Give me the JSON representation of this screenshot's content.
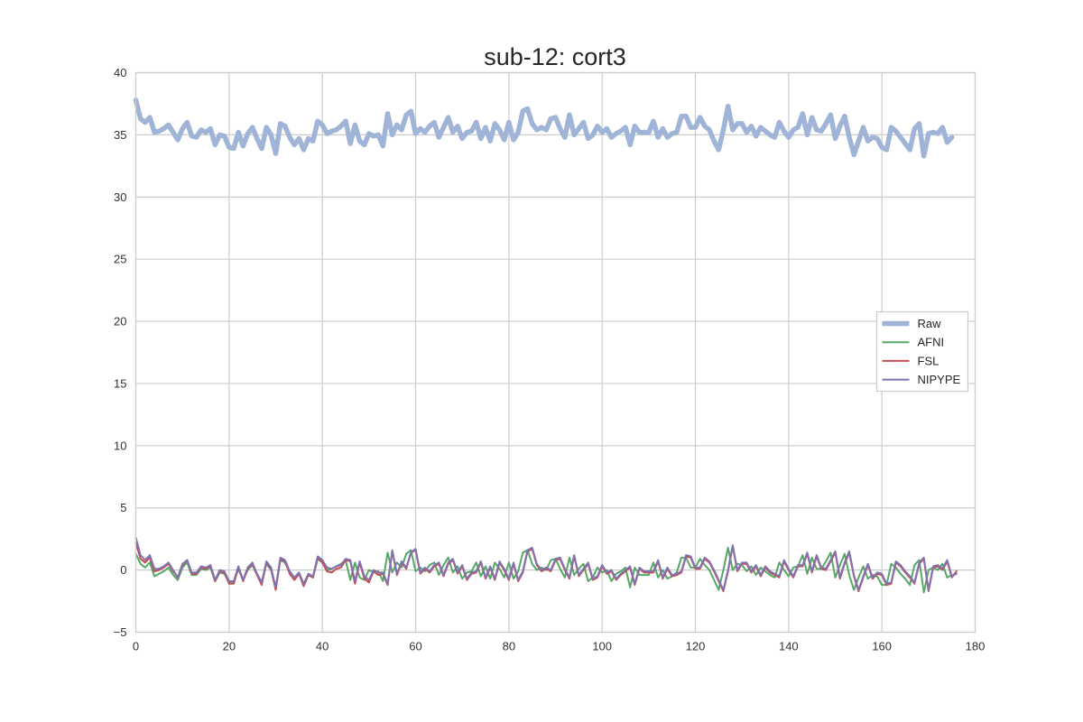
{
  "chart_data": {
    "type": "line",
    "title": "sub-12: cort3",
    "xlabel": "",
    "ylabel": "",
    "xlim": [
      0,
      180
    ],
    "ylim": [
      -5,
      40
    ],
    "xticks": [
      0,
      20,
      40,
      60,
      80,
      100,
      120,
      140,
      160,
      180
    ],
    "yticks": [
      -5,
      0,
      5,
      10,
      15,
      20,
      25,
      30,
      35,
      40
    ],
    "xtick_labels": [
      "0",
      "20",
      "40",
      "60",
      "80",
      "100",
      "120",
      "140",
      "160",
      "180"
    ],
    "ytick_labels": [
      "−5",
      "0",
      "5",
      "10",
      "15",
      "20",
      "25",
      "30",
      "35",
      "40"
    ],
    "grid": true,
    "legend_position": "center-right",
    "series": [
      {
        "name": "Raw",
        "color": "#9fb4d6",
        "values": [
          37.8,
          36.3,
          36.0,
          36.4,
          35.2,
          35.3,
          35.5,
          35.8,
          35.2,
          34.6,
          35.5,
          36.0,
          34.9,
          34.8,
          35.4,
          35.2,
          35.5,
          34.2,
          35.0,
          34.9,
          34.0,
          33.9,
          35.2,
          34.1,
          35.1,
          35.6,
          34.7,
          33.9,
          35.6,
          35.0,
          33.5,
          35.9,
          35.7,
          34.8,
          34.2,
          34.7,
          33.8,
          34.7,
          34.5,
          36.1,
          35.8,
          35.1,
          35.3,
          35.4,
          35.7,
          36.1,
          34.3,
          35.8,
          34.5,
          34.2,
          35.1,
          34.9,
          35.0,
          34.1,
          36.7,
          35.0,
          35.8,
          35.4,
          36.6,
          36.9,
          35.1,
          35.5,
          35.2,
          35.7,
          36.0,
          34.8,
          35.6,
          36.4,
          35.2,
          35.7,
          34.7,
          35.2,
          35.3,
          36.0,
          34.7,
          35.6,
          34.5,
          35.9,
          35.4,
          34.6,
          36.0,
          34.6,
          35.2,
          36.9,
          37.1,
          35.9,
          35.4,
          35.6,
          35.4,
          36.3,
          36.4,
          35.5,
          34.8,
          36.6,
          35.0,
          35.5,
          36.0,
          34.7,
          35.0,
          35.7,
          35.2,
          35.5,
          34.8,
          35.1,
          35.3,
          35.6,
          34.2,
          35.7,
          35.2,
          35.2,
          35.2,
          36.1,
          34.8,
          35.5,
          34.8,
          35.1,
          35.2,
          36.5,
          36.5,
          35.6,
          35.6,
          36.4,
          35.7,
          35.4,
          34.5,
          33.8,
          35.4,
          37.3,
          35.4,
          35.9,
          35.9,
          35.2,
          35.7,
          34.9,
          35.6,
          35.3,
          35.0,
          34.8,
          36.0,
          35.3,
          34.8,
          35.4,
          35.6,
          36.7,
          35.0,
          36.4,
          35.4,
          35.3,
          35.9,
          36.6,
          34.7,
          35.7,
          36.5,
          34.8,
          33.4,
          34.5,
          35.6,
          34.5,
          34.8,
          34.7,
          34.0,
          33.8,
          35.6,
          35.3,
          34.8,
          34.3,
          33.8,
          35.5,
          35.9,
          33.3,
          35.1,
          35.2,
          35.1,
          35.6,
          34.4,
          34.8
        ],
        "linewidth": 5.5
      },
      {
        "name": "AFNI",
        "color": "#55a868",
        "values": [
          1.3,
          0.5,
          0.2,
          0.6,
          -0.5,
          -0.3,
          -0.1,
          0.2,
          -0.4,
          -0.8,
          0.2,
          0.6,
          -0.4,
          -0.4,
          0.1,
          0.0,
          0.2,
          -0.9,
          -0.2,
          -0.3,
          -1.0,
          -1.0,
          0.1,
          -0.8,
          0.0,
          0.4,
          -0.4,
          -1.0,
          0.5,
          0.0,
          -1.5,
          0.8,
          0.6,
          -0.2,
          -0.7,
          -0.3,
          -1.1,
          -0.4,
          -0.6,
          0.9,
          0.6,
          0.0,
          0.1,
          0.3,
          0.5,
          0.8,
          -0.8,
          0.6,
          -0.6,
          -0.8,
          0.0,
          -0.2,
          -0.1,
          -0.9,
          1.4,
          -0.2,
          0.6,
          0.2,
          1.3,
          1.6,
          -0.1,
          0.2,
          -0.1,
          0.4,
          0.6,
          -0.4,
          0.4,
          1.0,
          -0.2,
          0.3,
          -0.7,
          -0.2,
          -0.1,
          0.6,
          -0.5,
          0.3,
          -0.7,
          0.6,
          0.1,
          -0.6,
          0.6,
          -0.7,
          -0.1,
          1.4,
          1.6,
          0.5,
          0.0,
          0.2,
          0.0,
          0.8,
          0.9,
          0.1,
          -0.6,
          1.0,
          -0.4,
          0.1,
          0.5,
          -0.9,
          -0.6,
          0.2,
          -0.2,
          0.0,
          -0.9,
          -0.3,
          -0.1,
          0.2,
          -1.4,
          0.2,
          -0.4,
          -0.4,
          -0.4,
          0.6,
          -0.6,
          0.0,
          -0.7,
          -0.5,
          -0.2,
          1.0,
          1.0,
          0.2,
          0.2,
          0.9,
          0.4,
          0.0,
          -0.8,
          -1.6,
          0.0,
          1.8,
          0.0,
          0.5,
          0.4,
          -0.1,
          0.3,
          -0.4,
          0.2,
          -0.1,
          -0.4,
          -0.6,
          0.6,
          0.0,
          -0.5,
          0.2,
          0.3,
          1.2,
          -0.3,
          1.0,
          0.1,
          0.1,
          0.7,
          1.4,
          -0.6,
          0.4,
          1.3,
          -0.4,
          -1.6,
          -0.6,
          0.3,
          -0.7,
          -0.4,
          -0.5,
          -1.2,
          -1.2,
          0.5,
          0.2,
          -0.3,
          -0.7,
          -1.2,
          0.4,
          0.8,
          -1.8,
          0.0,
          0.2,
          0.0,
          0.5,
          -0.6,
          -0.4
        ]
      },
      {
        "name": "FSL",
        "color": "#c44e52",
        "values": [
          2.2,
          0.9,
          0.6,
          1.0,
          -0.1,
          0.0,
          0.2,
          0.5,
          -0.1,
          -0.6,
          0.4,
          0.8,
          -0.3,
          -0.3,
          0.2,
          0.1,
          0.3,
          -0.9,
          -0.1,
          -0.2,
          -1.1,
          -1.1,
          0.2,
          -0.9,
          0.1,
          0.5,
          -0.4,
          -1.2,
          0.6,
          0.1,
          -1.6,
          0.9,
          0.7,
          -0.3,
          -0.8,
          -0.3,
          -1.3,
          -0.4,
          -0.6,
          1.0,
          0.6,
          -0.1,
          -0.2,
          0.1,
          0.2,
          0.8,
          0.7,
          -1.1,
          0.6,
          -0.7,
          -1.0,
          -0.1,
          -0.4,
          -0.3,
          -1.2,
          1.5,
          -0.4,
          0.6,
          0.1,
          1.4,
          1.6,
          -0.3,
          0.1,
          -0.2,
          0.3,
          0.5,
          -0.5,
          0.5,
          0.8,
          -0.3,
          0.3,
          -0.8,
          -0.3,
          -0.2,
          0.6,
          -0.7,
          0.2,
          -0.8,
          0.6,
          0.0,
          -0.8,
          0.5,
          -0.9,
          -0.2,
          1.5,
          1.7,
          0.4,
          -0.1,
          0.1,
          -0.1,
          0.8,
          0.9,
          0.0,
          -0.7,
          1.1,
          -0.5,
          0.0,
          0.5,
          -0.8,
          -0.6,
          0.3,
          -0.3,
          -0.1,
          -0.8,
          -0.4,
          -0.1,
          0.2,
          -1.2,
          0.1,
          -0.2,
          -0.2,
          -0.2,
          0.7,
          -0.7,
          0.1,
          -0.5,
          -0.4,
          -0.2,
          1.1,
          1.0,
          0.1,
          0.1,
          0.9,
          0.6,
          -0.1,
          -0.9,
          -1.7,
          -0.1,
          1.9,
          -0.1,
          0.5,
          0.5,
          -0.2,
          0.3,
          -0.5,
          0.2,
          -0.2,
          -0.4,
          -0.6,
          0.7,
          0.0,
          -0.6,
          0.3,
          0.3,
          1.3,
          -0.2,
          1.1,
          0.1,
          0.0,
          0.7,
          1.4,
          -0.7,
          0.5,
          1.4,
          -0.5,
          -1.7,
          -0.6,
          0.4,
          -0.7,
          -0.3,
          -0.4,
          -1.2,
          -1.1,
          0.6,
          0.3,
          -0.2,
          -0.6,
          -1.1,
          0.5,
          0.9,
          -1.7,
          0.2,
          0.3,
          0.0,
          0.7,
          -0.6,
          -0.1
        ]
      },
      {
        "name": "NIPYPE",
        "color": "#8172b2",
        "values": [
          2.6,
          1.2,
          0.8,
          1.2,
          0.1,
          0.1,
          0.3,
          0.6,
          0.0,
          -0.6,
          0.5,
          0.8,
          -0.2,
          -0.2,
          0.3,
          0.2,
          0.4,
          -0.8,
          0.0,
          -0.1,
          -0.9,
          -0.9,
          0.3,
          -0.8,
          0.2,
          0.6,
          -0.3,
          -1.0,
          0.7,
          0.2,
          -1.4,
          1.0,
          0.8,
          -0.1,
          -0.6,
          -0.2,
          -1.1,
          -0.3,
          -0.5,
          1.1,
          0.8,
          0.2,
          0.1,
          0.3,
          0.4,
          0.9,
          0.8,
          -0.9,
          0.7,
          -0.5,
          -0.8,
          0.0,
          -0.2,
          -0.2,
          -1.1,
          1.6,
          -0.3,
          0.7,
          0.2,
          1.4,
          1.7,
          -0.2,
          0.2,
          -0.1,
          0.4,
          0.6,
          -0.4,
          0.6,
          0.9,
          -0.2,
          0.4,
          -0.7,
          -0.2,
          -0.1,
          0.7,
          -0.6,
          0.3,
          -0.7,
          0.7,
          0.1,
          -0.7,
          0.6,
          -0.8,
          -0.1,
          1.6,
          1.8,
          0.5,
          0.0,
          0.2,
          0.0,
          0.9,
          1.0,
          0.1,
          -0.6,
          1.2,
          -0.4,
          0.1,
          0.6,
          -0.7,
          -0.5,
          0.4,
          -0.2,
          0.0,
          -0.7,
          -0.3,
          0.0,
          0.3,
          -1.1,
          0.2,
          -0.1,
          -0.1,
          -0.1,
          0.8,
          -0.6,
          0.2,
          -0.4,
          -0.3,
          -0.1,
          1.2,
          1.1,
          0.2,
          0.2,
          1.0,
          0.7,
          0.0,
          -0.8,
          -1.6,
          0.0,
          2.0,
          0.0,
          0.6,
          0.6,
          -0.1,
          0.4,
          -0.4,
          0.3,
          -0.1,
          -0.3,
          -0.5,
          0.8,
          0.1,
          -0.5,
          0.4,
          0.4,
          1.4,
          -0.1,
          1.2,
          0.2,
          0.1,
          0.8,
          1.5,
          -0.6,
          0.6,
          1.5,
          -0.4,
          -1.6,
          -0.5,
          0.5,
          -0.6,
          -0.2,
          -0.3,
          -1.1,
          -1.0,
          0.7,
          0.4,
          -0.1,
          -0.5,
          -1.0,
          0.6,
          1.0,
          -1.6,
          0.3,
          0.4,
          0.1,
          0.8,
          -0.5,
          -0.3
        ]
      }
    ]
  }
}
